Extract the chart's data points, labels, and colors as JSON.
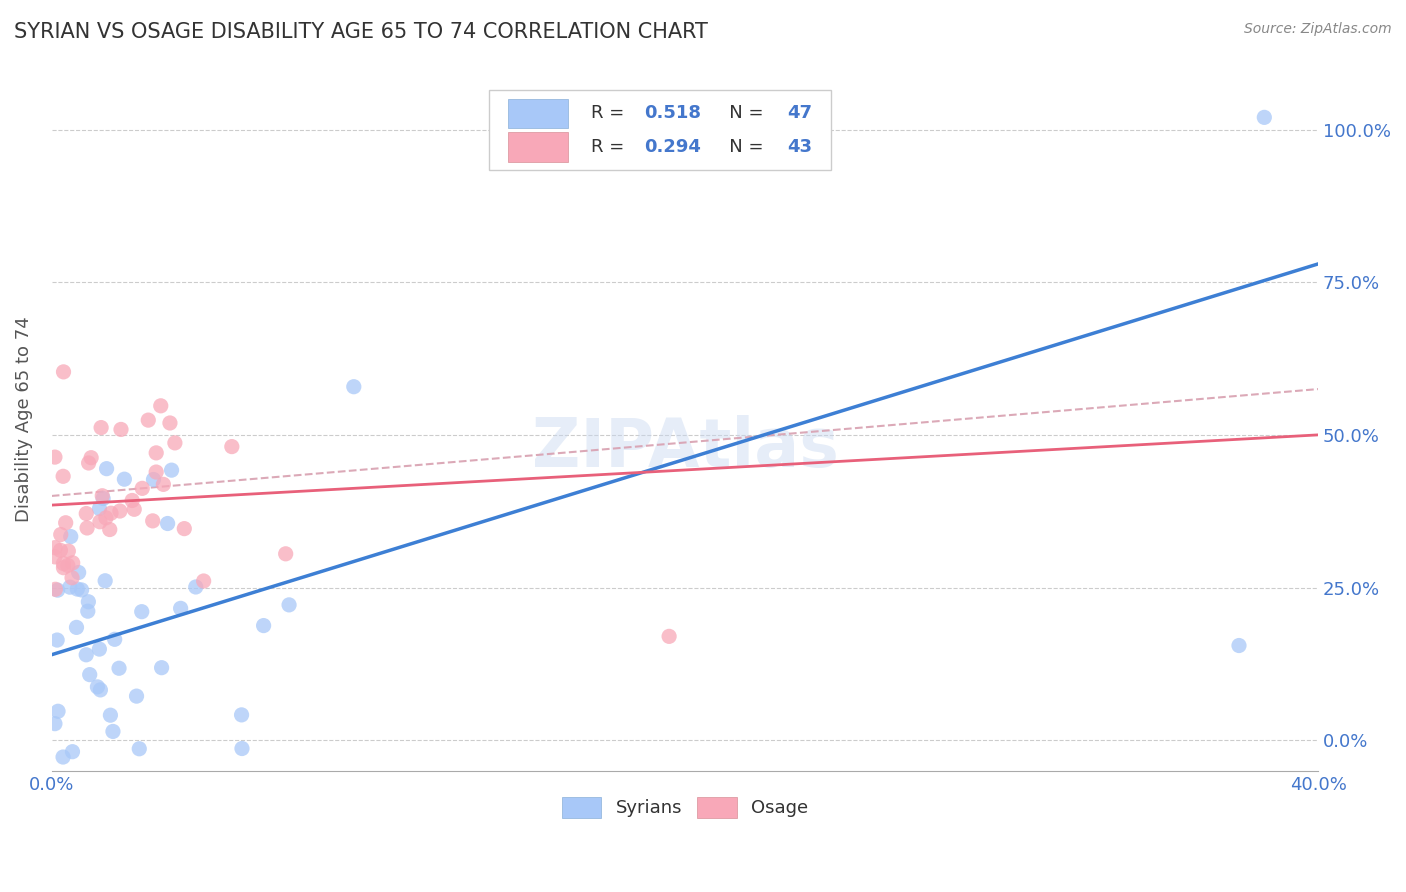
{
  "title": "SYRIAN VS OSAGE DISABILITY AGE 65 TO 74 CORRELATION CHART",
  "source": "Source: ZipAtlas.com",
  "ylabel": "Disability Age 65 to 74",
  "xlim": [
    0.0,
    0.4
  ],
  "ylim": [
    -0.05,
    1.1
  ],
  "xticks": [
    0.0,
    0.08,
    0.16,
    0.24,
    0.32,
    0.4
  ],
  "xtick_labels": [
    "0.0%",
    "",
    "",
    "",
    "",
    "40.0%"
  ],
  "yticks": [
    0.0,
    0.25,
    0.5,
    0.75,
    1.0
  ],
  "ytick_labels": [
    "0.0%",
    "25.0%",
    "50.0%",
    "75.0%",
    "100.0%"
  ],
  "syrians_color": "#a8c8f8",
  "osage_color": "#f8a8b8",
  "syrians_line_color": "#3d7fd4",
  "osage_line_color": "#e8607a",
  "dashed_line_color": "#d8a0b0",
  "legend_R1": "0.518",
  "legend_N1": "47",
  "legend_R2": "0.294",
  "legend_N2": "43",
  "watermark": "ZIPAtlas",
  "title_color": "#333333",
  "axis_label_color": "#555555",
  "tick_color": "#4477cc",
  "grid_color": "#cccccc",
  "syrians_line_x0": 0.0,
  "syrians_line_y0": 0.14,
  "syrians_line_x1": 0.4,
  "syrians_line_y1": 0.78,
  "osage_line_x0": 0.0,
  "osage_line_y0": 0.385,
  "osage_line_x1": 0.4,
  "osage_line_y1": 0.5,
  "dashed_line_x0": 0.0,
  "dashed_line_y0": 0.4,
  "dashed_line_x1": 0.4,
  "dashed_line_y1": 0.575
}
